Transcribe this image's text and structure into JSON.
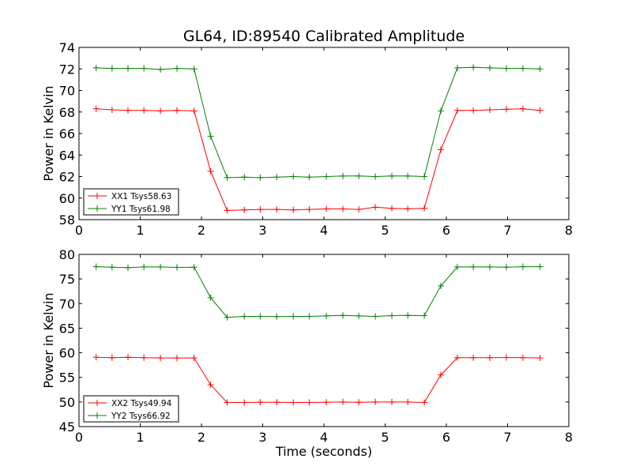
{
  "figure": {
    "title": "GL64, ID:89540 Calibrated Amplitude"
  },
  "chart_data": [
    {
      "type": "line",
      "title": "GL64, ID:89540 Calibrated Amplitude",
      "xlabel": "",
      "ylabel": "Power in Kelvin",
      "xlim": [
        0,
        8
      ],
      "ylim": [
        58,
        74
      ],
      "xticks": [
        0,
        1,
        2,
        3,
        4,
        5,
        6,
        7,
        8
      ],
      "yticks": [
        58,
        60,
        62,
        64,
        66,
        68,
        70,
        72,
        74
      ],
      "grid": false,
      "legend_position": "lower-left",
      "x": [
        0.28,
        0.54,
        0.8,
        1.06,
        1.33,
        1.6,
        1.88,
        2.15,
        2.42,
        2.7,
        2.96,
        3.23,
        3.5,
        3.76,
        4.04,
        4.31,
        4.57,
        4.84,
        5.11,
        5.37,
        5.64,
        5.91,
        6.18,
        6.44,
        6.71,
        6.98,
        7.25,
        7.53
      ],
      "series": [
        {
          "name": "XX1 Tsys58.63",
          "color": "#ff0000",
          "values": [
            68.3,
            68.2,
            68.15,
            68.15,
            68.1,
            68.15,
            68.1,
            62.5,
            58.85,
            58.9,
            58.95,
            58.95,
            58.9,
            58.95,
            59.0,
            59.0,
            58.95,
            59.15,
            59.05,
            59.0,
            59.05,
            64.5,
            68.15,
            68.15,
            68.2,
            68.25,
            68.3,
            68.15
          ]
        },
        {
          "name": "YY1 Tsys61.98",
          "color": "#008000",
          "values": [
            72.1,
            72.05,
            72.05,
            72.05,
            71.95,
            72.05,
            72.0,
            65.75,
            61.9,
            61.95,
            61.9,
            61.95,
            62.0,
            61.95,
            62.0,
            62.05,
            62.05,
            62.0,
            62.05,
            62.05,
            62.0,
            68.1,
            72.1,
            72.15,
            72.1,
            72.05,
            72.05,
            72.0
          ]
        }
      ]
    },
    {
      "type": "line",
      "title": "",
      "xlabel": "Time (seconds)",
      "ylabel": "Power in Kelvin",
      "xlim": [
        0,
        8
      ],
      "ylim": [
        45,
        80
      ],
      "xticks": [
        0,
        1,
        2,
        3,
        4,
        5,
        6,
        7,
        8
      ],
      "yticks": [
        45,
        50,
        55,
        60,
        65,
        70,
        75,
        80
      ],
      "grid": false,
      "legend_position": "lower-left",
      "x": [
        0.28,
        0.54,
        0.8,
        1.06,
        1.33,
        1.6,
        1.88,
        2.15,
        2.42,
        2.7,
        2.96,
        3.23,
        3.5,
        3.76,
        4.04,
        4.31,
        4.57,
        4.84,
        5.11,
        5.37,
        5.64,
        5.91,
        6.18,
        6.44,
        6.71,
        6.98,
        7.25,
        7.53
      ],
      "series": [
        {
          "name": "XX2 Tsys49.94",
          "color": "#ff0000",
          "values": [
            59.1,
            59.0,
            59.1,
            59.0,
            58.95,
            58.95,
            58.95,
            53.5,
            49.9,
            49.9,
            49.95,
            49.95,
            49.9,
            49.9,
            49.95,
            50.0,
            49.95,
            50.0,
            50.0,
            50.0,
            49.9,
            55.5,
            59.0,
            59.0,
            59.0,
            59.05,
            59.0,
            58.95
          ]
        },
        {
          "name": "YY2 Tsys66.92",
          "color": "#008000",
          "values": [
            77.5,
            77.4,
            77.3,
            77.45,
            77.45,
            77.35,
            77.4,
            71.2,
            67.2,
            67.4,
            67.4,
            67.35,
            67.4,
            67.4,
            67.5,
            67.6,
            67.5,
            67.4,
            67.55,
            67.6,
            67.55,
            73.6,
            77.45,
            77.45,
            77.45,
            77.4,
            77.5,
            77.5
          ]
        }
      ]
    }
  ]
}
